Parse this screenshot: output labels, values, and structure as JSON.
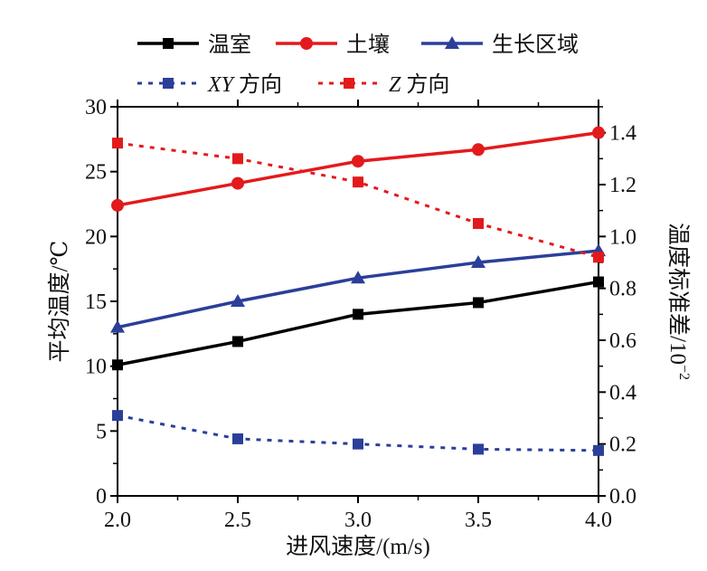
{
  "chart_data": {
    "type": "line",
    "xlabel": "进风速度/(m/s)",
    "ylabel_left": "平均温度/℃",
    "ylabel_right": "温度标准差/10",
    "ylabel_right_exp": "−2",
    "x_ticks": [
      "2.0",
      "2.5",
      "3.0",
      "3.5",
      "4.0"
    ],
    "y_left_ticks": [
      "0",
      "5",
      "10",
      "15",
      "20",
      "25",
      "30"
    ],
    "y_right_ticks": [
      "0.0",
      "0.2",
      "0.4",
      "0.6",
      "0.8",
      "1.0",
      "1.2",
      "1.4"
    ],
    "xlim": [
      2.0,
      4.0
    ],
    "ylim_left": [
      0,
      30
    ],
    "ylim_right": [
      0,
      1.5
    ],
    "grid": false,
    "legend_position": "top",
    "x": [
      2.0,
      2.5,
      3.0,
      3.5,
      4.0
    ],
    "series": [
      {
        "name": "温室",
        "axis": "left",
        "color": "#000000",
        "style": "solid",
        "marker": "square",
        "values": [
          10.1,
          11.9,
          14.0,
          14.9,
          16.5
        ]
      },
      {
        "name": "土壤",
        "axis": "left",
        "color": "#e31a1c",
        "style": "solid",
        "marker": "circle",
        "values": [
          22.4,
          24.1,
          25.8,
          26.7,
          28.0
        ]
      },
      {
        "name": "生长区域",
        "axis": "left",
        "color": "#2b3f99",
        "style": "solid",
        "marker": "triangle",
        "values": [
          13.0,
          15.0,
          16.8,
          18.0,
          18.9
        ]
      },
      {
        "name": "XY 方向",
        "name_italic": "XY",
        "name_rest": " 方向",
        "axis": "right",
        "color": "#2b3f99",
        "style": "dotted",
        "marker": "square",
        "values": [
          0.31,
          0.22,
          0.2,
          0.18,
          0.175
        ]
      },
      {
        "name": "Z 方向",
        "name_italic": "Z",
        "name_rest": " 方向",
        "axis": "right",
        "color": "#e31a1c",
        "style": "dotted",
        "marker": "square",
        "values": [
          1.36,
          1.3,
          1.21,
          1.05,
          0.92
        ]
      }
    ]
  }
}
